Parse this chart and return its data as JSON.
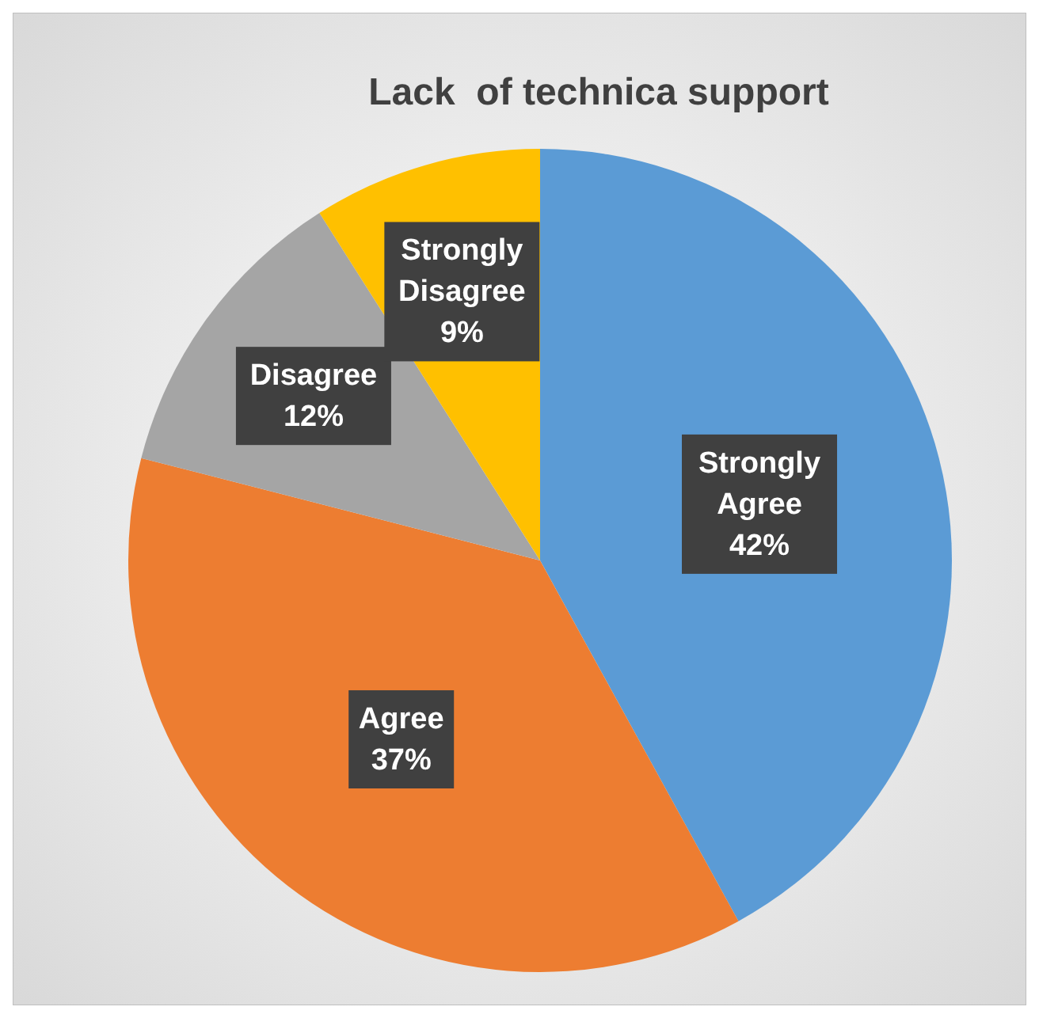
{
  "chart_data": {
    "type": "pie",
    "title": "Lack  of technica support",
    "categories": [
      "Strongly Agree",
      "Agree",
      "Disagree",
      "Strongly Disagree"
    ],
    "values": [
      42,
      37,
      12,
      9
    ],
    "value_labels": [
      "42%",
      "37%",
      "12%",
      "9%"
    ],
    "colors": [
      "#5b9bd5",
      "#ed7d31",
      "#a5a5a5",
      "#ffc000"
    ],
    "legend": false
  }
}
